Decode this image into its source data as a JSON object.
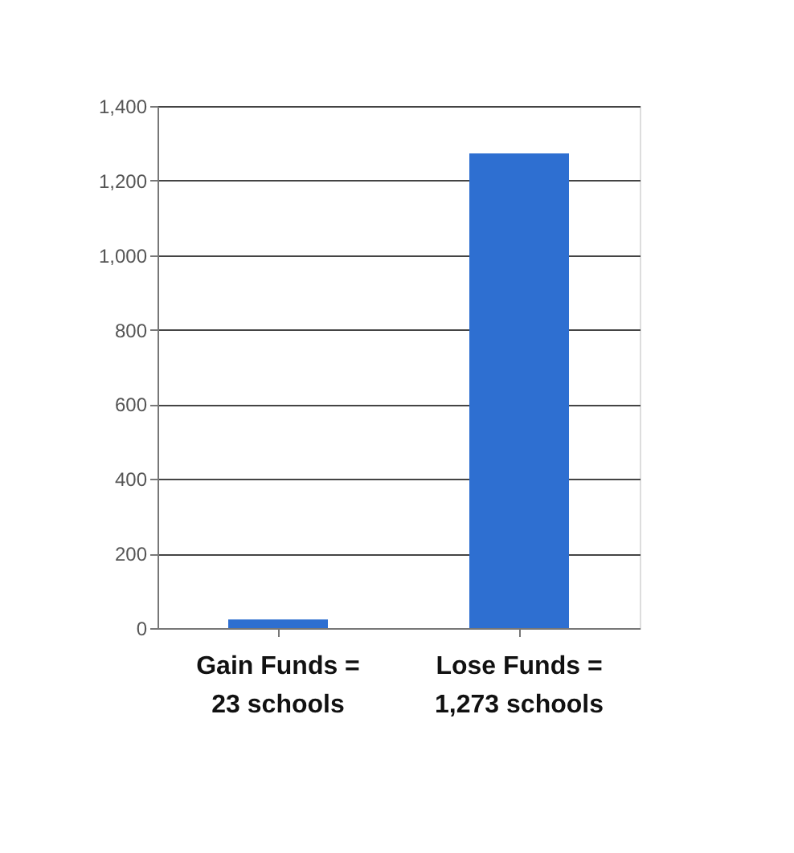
{
  "chart_data": {
    "type": "bar",
    "categories": [
      "Gain Funds =\n23 schools",
      "Lose Funds =\n1,273 schools"
    ],
    "values": [
      23,
      1273
    ],
    "color": "#2e6fd1",
    "ylim": [
      0,
      1400
    ],
    "yticks": [
      0,
      200,
      400,
      600,
      800,
      {
        "value": 1000,
        "label": "1,000"
      },
      {
        "value": 1200,
        "label": "1,200"
      },
      {
        "value": 1400,
        "label": "1,400"
      }
    ],
    "grid": "y"
  }
}
